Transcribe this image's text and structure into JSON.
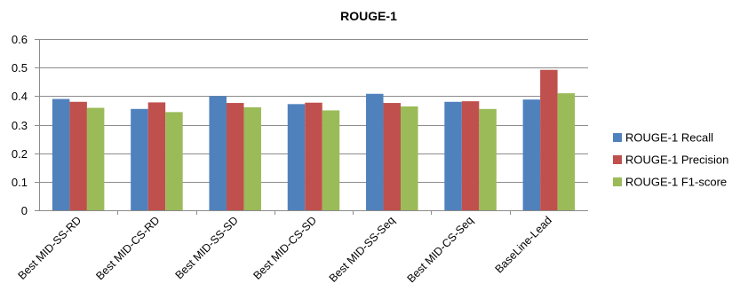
{
  "chart_data": {
    "type": "bar",
    "title": "ROUGE-1",
    "xlabel": "",
    "ylabel": "",
    "ylim": [
      0,
      0.6
    ],
    "yticks": [
      "0",
      "0.1",
      "0.2",
      "0.3",
      "0.4",
      "0.5",
      "0.6"
    ],
    "grid": true,
    "legend_position": "right",
    "categories": [
      "Best MID-SS-RD",
      "Best MID-CS-RD",
      "Best MID-SS-SD",
      "Best MID-CS-SD",
      "Best MID-SS-Seq",
      "Best MID-CS-Seq",
      "BaseLine-Lead"
    ],
    "series": [
      {
        "name": "ROUGE-1 Recall",
        "color": "#4f81bd",
        "values": [
          0.39,
          0.355,
          0.4,
          0.372,
          0.408,
          0.38,
          0.388
        ]
      },
      {
        "name": "ROUGE-1 Precision",
        "color": "#c0504d",
        "values": [
          0.38,
          0.378,
          0.376,
          0.377,
          0.376,
          0.382,
          0.492
        ]
      },
      {
        "name": "ROUGE-1 F1-score",
        "color": "#9bbb59",
        "values": [
          0.359,
          0.344,
          0.361,
          0.35,
          0.364,
          0.355,
          0.41
        ]
      }
    ]
  }
}
